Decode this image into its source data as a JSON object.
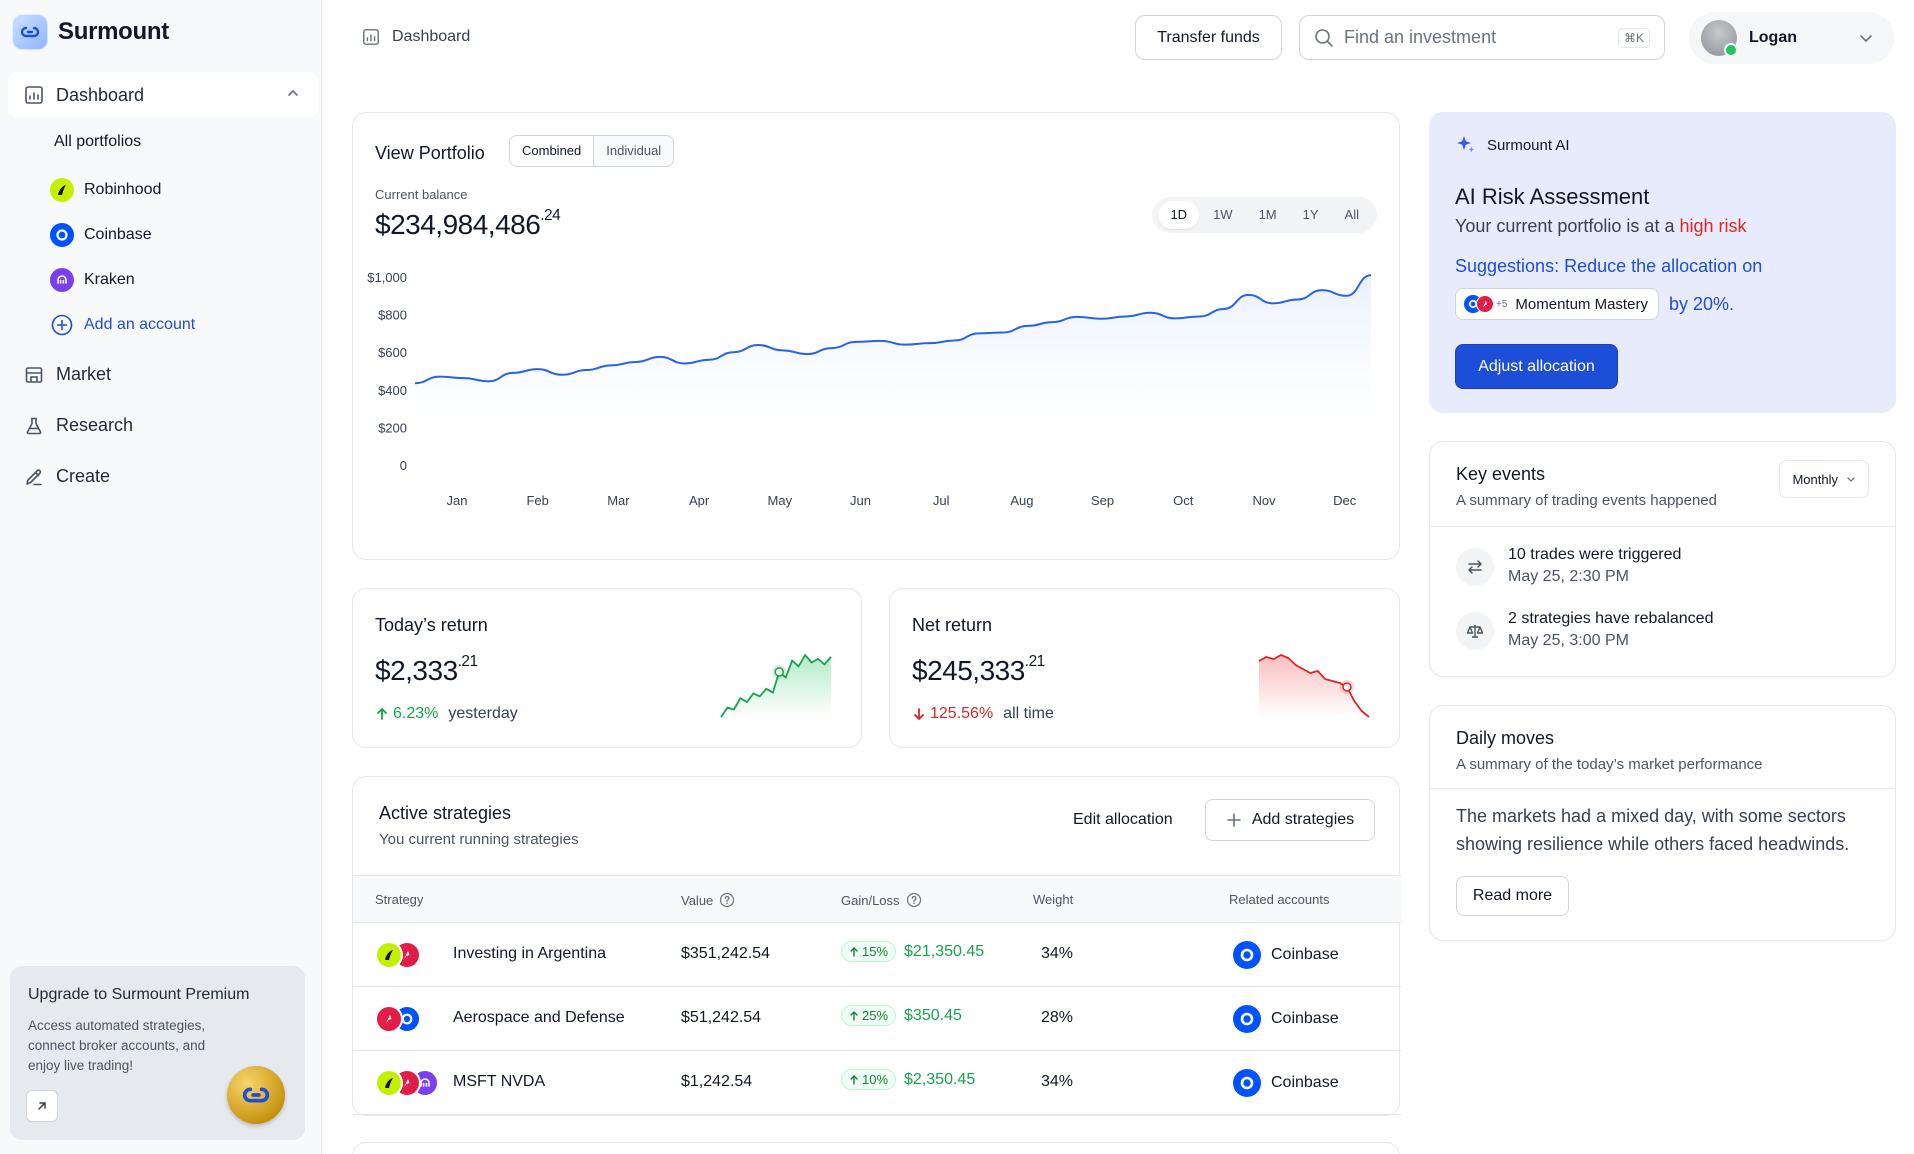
{
  "brand": {
    "name": "Surmount"
  },
  "sidebar": {
    "dashboard_label": "Dashboard",
    "all_portfolios": "All portfolios",
    "accounts": [
      {
        "name": "Robinhood",
        "color": "#c4f000",
        "icon": "robinhood-icon"
      },
      {
        "name": "Coinbase",
        "color": "#0052ff",
        "icon": "coinbase-icon"
      },
      {
        "name": "Kraken",
        "color": "#7b3ff2",
        "icon": "kraken-icon"
      }
    ],
    "add_account": "Add an account",
    "nav": [
      {
        "label": "Market",
        "icon": "market-icon"
      },
      {
        "label": "Research",
        "icon": "flask-icon"
      },
      {
        "label": "Create",
        "icon": "pen-icon"
      }
    ],
    "premium": {
      "title": "Upgrade to Surmount Premium",
      "desc": "Access automated strategies, connect broker accounts, and enjoy live trading!"
    }
  },
  "topbar": {
    "breadcrumb": "Dashboard",
    "transfer_label": "Transfer funds",
    "search_placeholder": "Find an investment",
    "search_shortcut": "⌘K",
    "user_name": "Logan"
  },
  "portfolio": {
    "title": "View Portfolio",
    "segments": [
      "Combined",
      "Individual"
    ],
    "active_segment": "Combined",
    "balance_label": "Current balance",
    "balance_main": "$234,984,486",
    "balance_cents": ".24",
    "ranges": [
      "1D",
      "1W",
      "1M",
      "1Y",
      "All"
    ],
    "active_range": "1D"
  },
  "chart_data": {
    "type": "area",
    "categories": [
      "Jan",
      "Feb",
      "Mar",
      "Apr",
      "May",
      "Jun",
      "Jul",
      "Aug",
      "Sep",
      "Oct",
      "Nov",
      "Dec"
    ],
    "y_ticks": [
      "$1,000",
      "$800",
      "$600",
      "$400",
      "$200",
      "0"
    ],
    "ylim": [
      0,
      1000
    ],
    "series": [
      {
        "color": "#2563eb",
        "x": [
          0,
          0.3,
          0.6,
          0.9,
          1.2,
          1.5,
          1.8,
          2.1,
          2.4,
          2.7,
          3.0,
          3.3,
          3.6,
          3.9,
          4.2,
          4.5,
          4.8,
          5.1,
          5.4,
          5.7,
          6.0,
          6.3,
          6.6,
          6.9,
          7.2,
          7.5,
          7.8,
          8.1,
          8.4,
          8.7,
          9.0,
          9.3,
          9.6,
          9.9,
          10.2,
          10.5,
          10.8,
          11.1,
          11.4,
          11.7
        ],
        "values": [
          435,
          470,
          462,
          445,
          490,
          510,
          480,
          505,
          530,
          548,
          575,
          540,
          560,
          600,
          638,
          610,
          590,
          622,
          655,
          660,
          640,
          648,
          662,
          700,
          705,
          740,
          760,
          788,
          778,
          790,
          810,
          780,
          790,
          830,
          905,
          860,
          880,
          930,
          900,
          1010
        ]
      }
    ],
    "grid": false
  },
  "today_return": {
    "title": "Today’s return",
    "value": "$2,333",
    "cents": ".21",
    "pct": "6.23%",
    "period": "yesterday",
    "spark": [
      2,
      3,
      2.8,
      4,
      3.6,
      4.5,
      4.2,
      5,
      4.6,
      6.8,
      6.2,
      8,
      7.4,
      8.6,
      7.8,
      8.2,
      7.6,
      8.4
    ]
  },
  "net_return": {
    "title": "Net return",
    "value": "$245,333",
    "cents": ".21",
    "pct": "125.56%",
    "period": "all time",
    "spark": [
      8,
      8.4,
      8.2,
      8.6,
      8.3,
      7.6,
      7.2,
      6.8,
      7.0,
      6.2,
      6.0,
      5.8,
      5.4,
      4.0,
      3.0,
      2.4
    ]
  },
  "strategies": {
    "title": "Active strategies",
    "subtitle": "You current running strategies",
    "edit_label": "Edit allocation",
    "add_label": "Add strategies",
    "columns": [
      "Strategy",
      "Value",
      "Gain/Loss",
      "Weight",
      "Related accounts"
    ],
    "rows": [
      {
        "name": "Investing in Argentina",
        "value": "$351,242.54",
        "gain_pct": "15%",
        "gain": "$21,350.45",
        "weight": "34%",
        "account": "Coinbase",
        "logos": [
          "robinhood",
          "red"
        ]
      },
      {
        "name": "Aerospace and Defense",
        "value": "$51,242.54",
        "gain_pct": "25%",
        "gain": "$350.45",
        "weight": "28%",
        "account": "Coinbase",
        "logos": [
          "red",
          "coinbase"
        ]
      },
      {
        "name": "MSFT NVDA",
        "value": "$1,242.54",
        "gain_pct": "10%",
        "gain": "$2,350.45",
        "weight": "34%",
        "account": "Coinbase",
        "logos": [
          "robinhood",
          "red",
          "kraken"
        ]
      }
    ]
  },
  "ai": {
    "label": "Surmount AI",
    "title": "AI Risk Assessment",
    "desc_prefix": "Your current portfolio is at a ",
    "desc_risk": "high risk",
    "suggestion": "Suggestions: Reduce the allocation on",
    "chip_count": "+5",
    "chip_label": "Momentum Mastery",
    "by_text": "by 20%.",
    "button": "Adjust allocation"
  },
  "events": {
    "title": "Key events",
    "subtitle": "A summary of trading events happened",
    "period": "Monthly",
    "items": [
      {
        "text": "10 trades were triggered",
        "time": "May 25, 2:30 PM",
        "icon": "swap-icon"
      },
      {
        "text": "2 strategies have rebalanced",
        "time": "May 25, 3:00 PM",
        "icon": "scale-icon"
      }
    ]
  },
  "daily": {
    "title": "Daily moves",
    "subtitle": "A summary of the today’s market performance",
    "text": "The markets had a mixed day, with some sectors showing resilience while others faced headwinds.",
    "button": "Read more"
  }
}
